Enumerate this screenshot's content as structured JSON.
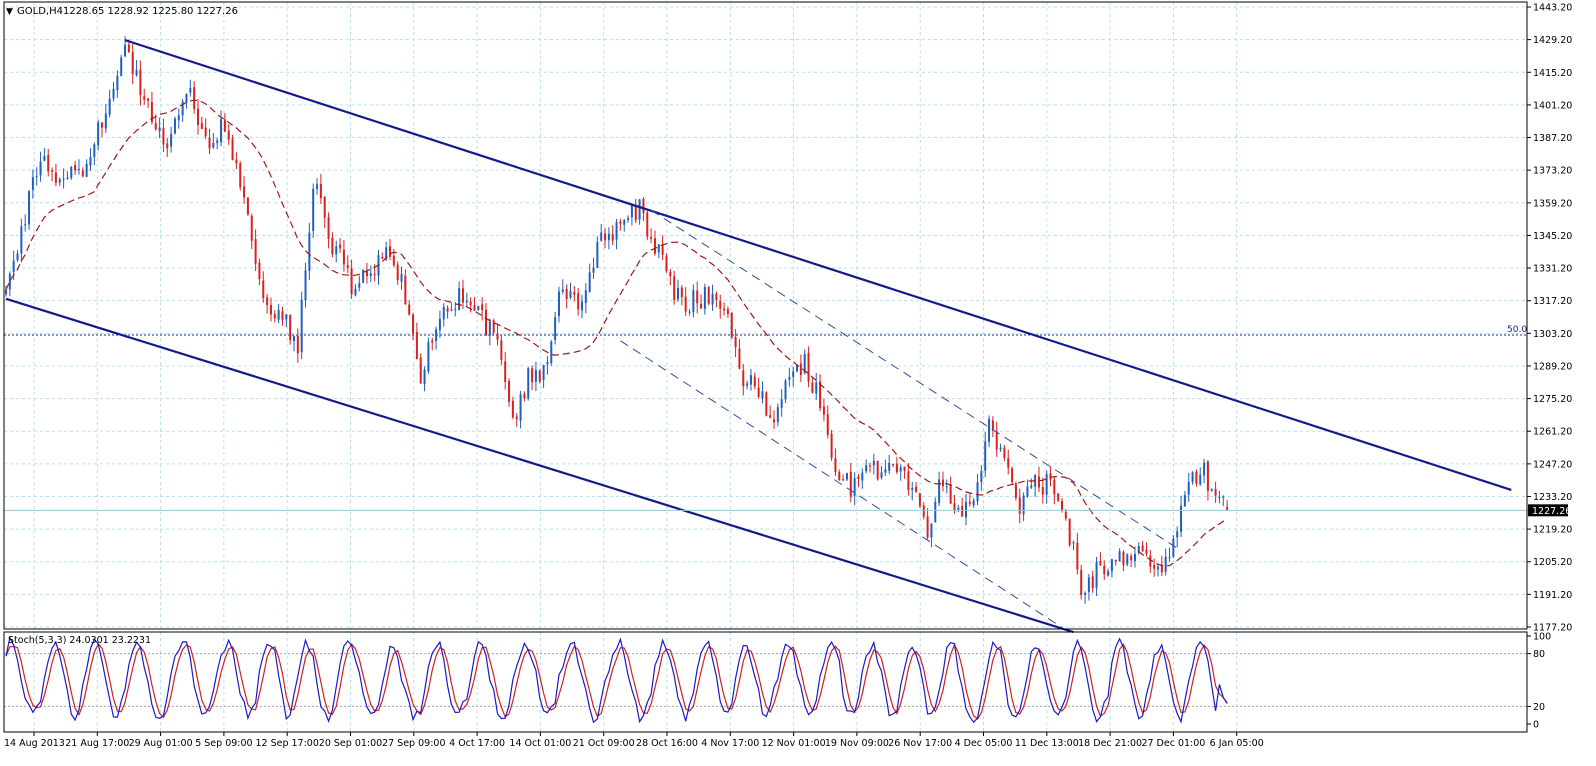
{
  "header": {
    "symbol": "GOLD,H4",
    "ohlc": "1228.65 1228.92 1225.80 1227.26",
    "menu_glyph": "▼"
  },
  "stoch_header": "Stoch(5,3,3) 24.0301 23.2231",
  "fib_label": "50.0",
  "current_price_label": "1227.26",
  "colors": {
    "background": "#ffffff",
    "grid": "#b8dfe8",
    "bull": "#1f5fbf",
    "bear": "#d92020",
    "ma": "#a01818",
    "channel": "#141a8a",
    "dashed_channel": "#3a4aa0",
    "fib": "#1a237e",
    "stoch_main": "#1a1ac8",
    "stoch_signal": "#d02020",
    "axis_text": "#000000"
  },
  "chart_data": [
    {
      "type": "candlestick",
      "title": "GOLD,H4",
      "price_axis_ticks": [
        "1443.20",
        "1429.20",
        "1415.20",
        "1401.20",
        "1387.20",
        "1373.20",
        "1359.20",
        "1345.20",
        "1331.20",
        "1317.20",
        "1303.20",
        "1289.20",
        "1275.20",
        "1261.20",
        "1247.20",
        "1233.20",
        "1219.20",
        "1205.20",
        "1191.20",
        "1177.20"
      ],
      "ylim": [
        1177.2,
        1443.2
      ],
      "time_axis_ticks": [
        "14 Aug 2013",
        "21 Aug 17:00",
        "29 Aug 01:00",
        "5 Sep 09:00",
        "12 Sep 17:00",
        "20 Sep 01:00",
        "27 Sep 09:00",
        "4 Oct 17:00",
        "14 Oct 01:00",
        "21 Oct 09:00",
        "28 Oct 16:00",
        "4 Nov 17:00",
        "12 Nov 01:00",
        "19 Nov 09:00",
        "26 Nov 17:00",
        "4 Dec 05:00",
        "11 Dec 13:00",
        "18 Dec 21:00",
        "27 Dec 01:00",
        "6 Jan 05:00"
      ],
      "last_price": 1227.26,
      "fibonacci_level": {
        "label": "50.0",
        "price": 1302.5
      },
      "price_path_anchors": [
        {
          "bar": 0,
          "price": 1317
        },
        {
          "bar": 3,
          "price": 1340
        },
        {
          "bar": 7,
          "price": 1370
        },
        {
          "bar": 10,
          "price": 1380
        },
        {
          "bar": 14,
          "price": 1365
        },
        {
          "bar": 20,
          "price": 1375
        },
        {
          "bar": 26,
          "price": 1400
        },
        {
          "bar": 31,
          "price": 1428
        },
        {
          "bar": 35,
          "price": 1410
        },
        {
          "bar": 39,
          "price": 1392
        },
        {
          "bar": 43,
          "price": 1385
        },
        {
          "bar": 47,
          "price": 1410
        },
        {
          "bar": 52,
          "price": 1385
        },
        {
          "bar": 56,
          "price": 1390
        },
        {
          "bar": 60,
          "price": 1375
        },
        {
          "bar": 63,
          "price": 1355
        },
        {
          "bar": 67,
          "price": 1320
        },
        {
          "bar": 72,
          "price": 1310
        },
        {
          "bar": 76,
          "price": 1295
        },
        {
          "bar": 80,
          "price": 1370
        },
        {
          "bar": 84,
          "price": 1345
        },
        {
          "bar": 90,
          "price": 1325
        },
        {
          "bar": 96,
          "price": 1330
        },
        {
          "bar": 100,
          "price": 1338
        },
        {
          "bar": 104,
          "price": 1320
        },
        {
          "bar": 108,
          "price": 1285
        },
        {
          "bar": 112,
          "price": 1310
        },
        {
          "bar": 118,
          "price": 1320
        },
        {
          "bar": 122,
          "price": 1312
        },
        {
          "bar": 128,
          "price": 1300
        },
        {
          "bar": 132,
          "price": 1265
        },
        {
          "bar": 136,
          "price": 1285
        },
        {
          "bar": 140,
          "price": 1285
        },
        {
          "bar": 144,
          "price": 1320
        },
        {
          "bar": 150,
          "price": 1315
        },
        {
          "bar": 155,
          "price": 1345
        },
        {
          "bar": 160,
          "price": 1350
        },
        {
          "bar": 165,
          "price": 1358
        },
        {
          "bar": 168,
          "price": 1345
        },
        {
          "bar": 172,
          "price": 1330
        },
        {
          "bar": 176,
          "price": 1315
        },
        {
          "bar": 180,
          "price": 1318
        },
        {
          "bar": 184,
          "price": 1322
        },
        {
          "bar": 188,
          "price": 1312
        },
        {
          "bar": 192,
          "price": 1285
        },
        {
          "bar": 196,
          "price": 1278
        },
        {
          "bar": 200,
          "price": 1268
        },
        {
          "bar": 204,
          "price": 1285
        },
        {
          "bar": 208,
          "price": 1290
        },
        {
          "bar": 212,
          "price": 1275
        },
        {
          "bar": 216,
          "price": 1245
        },
        {
          "bar": 220,
          "price": 1238
        },
        {
          "bar": 224,
          "price": 1250
        },
        {
          "bar": 228,
          "price": 1240
        },
        {
          "bar": 232,
          "price": 1245
        },
        {
          "bar": 236,
          "price": 1238
        },
        {
          "bar": 240,
          "price": 1220
        },
        {
          "bar": 244,
          "price": 1242
        },
        {
          "bar": 248,
          "price": 1228
        },
        {
          "bar": 252,
          "price": 1235
        },
        {
          "bar": 256,
          "price": 1262
        },
        {
          "bar": 260,
          "price": 1250
        },
        {
          "bar": 264,
          "price": 1225
        },
        {
          "bar": 268,
          "price": 1240
        },
        {
          "bar": 272,
          "price": 1238
        },
        {
          "bar": 276,
          "price": 1225
        },
        {
          "bar": 280,
          "price": 1195
        },
        {
          "bar": 284,
          "price": 1200
        },
        {
          "bar": 288,
          "price": 1205
        },
        {
          "bar": 292,
          "price": 1210
        },
        {
          "bar": 296,
          "price": 1213
        },
        {
          "bar": 300,
          "price": 1200
        },
        {
          "bar": 304,
          "price": 1215
        },
        {
          "bar": 308,
          "price": 1238
        },
        {
          "bar": 312,
          "price": 1243
        },
        {
          "bar": 316,
          "price": 1232
        },
        {
          "bar": 318,
          "price": 1227.26
        }
      ],
      "volatility": 3.2,
      "moving_average_period": 24,
      "channel_lines": [
        {
          "name": "upper",
          "style": "solid",
          "from": {
            "bar": 31,
            "price": 1429
          },
          "to": {
            "bar": 392,
            "price": 1236
          }
        },
        {
          "name": "lower",
          "style": "solid",
          "from": {
            "bar": 0,
            "price": 1318
          },
          "to": {
            "bar": 278,
            "price": 1175
          }
        },
        {
          "name": "inner-upper",
          "style": "dashed",
          "from": {
            "bar": 168,
            "price": 1356
          },
          "to": {
            "bar": 306,
            "price": 1210
          }
        },
        {
          "name": "inner-lower",
          "style": "dashed",
          "from": {
            "bar": 160,
            "price": 1300
          },
          "to": {
            "bar": 275,
            "price": 1177
          }
        }
      ]
    },
    {
      "type": "line",
      "title": "Stoch(5,3,3) 24.0301 23.2231",
      "ylim": [
        0,
        100
      ],
      "y_ticks": [
        "100",
        "80",
        "20",
        "0"
      ],
      "levels": [
        80,
        20
      ],
      "series": [
        {
          "name": "Main",
          "last": 24.0301
        },
        {
          "name": "Signal",
          "last": 23.2231
        }
      ],
      "cycle_bars": 11
    }
  ]
}
